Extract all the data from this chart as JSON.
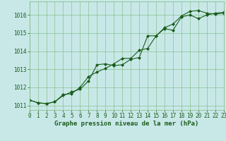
{
  "line1_x": [
    0,
    1,
    2,
    3,
    4,
    5,
    6,
    7,
    8,
    9,
    10,
    11,
    12,
    13,
    14,
    15,
    16,
    17,
    18,
    19,
    20,
    21,
    22,
    23
  ],
  "line1_y": [
    1011.3,
    1011.15,
    1011.1,
    1011.2,
    1011.55,
    1011.75,
    1011.9,
    1012.35,
    1013.25,
    1013.3,
    1013.2,
    1013.25,
    1013.55,
    1013.65,
    1014.85,
    1014.85,
    1015.3,
    1015.5,
    1015.95,
    1016.2,
    1016.25,
    1016.1,
    1016.05,
    1016.1
  ],
  "line2_x": [
    0,
    1,
    2,
    3,
    4,
    5,
    6,
    7,
    8,
    9,
    10,
    11,
    12,
    13,
    14,
    15,
    16,
    17,
    18,
    19,
    20,
    21,
    22,
    23
  ],
  "line2_y": [
    1011.3,
    1011.15,
    1011.1,
    1011.2,
    1011.6,
    1011.65,
    1012.0,
    1012.6,
    1012.85,
    1013.05,
    1013.3,
    1013.6,
    1013.6,
    1014.05,
    1014.15,
    1014.85,
    1015.25,
    1015.15,
    1015.9,
    1016.0,
    1015.8,
    1016.0,
    1016.1,
    1016.15
  ],
  "line_color": "#1a5c1a",
  "bg_color": "#c8e8e8",
  "grid_color": "#7ab87a",
  "xlabel": "Graphe pression niveau de la mer (hPa)",
  "ylim": [
    1010.75,
    1016.75
  ],
  "xlim": [
    0,
    23
  ],
  "yticks": [
    1011,
    1012,
    1013,
    1014,
    1015,
    1016
  ],
  "xticks": [
    0,
    1,
    2,
    3,
    4,
    5,
    6,
    7,
    8,
    9,
    10,
    11,
    12,
    13,
    14,
    15,
    16,
    17,
    18,
    19,
    20,
    21,
    22,
    23
  ],
  "marker": "D",
  "markersize": 2.0,
  "linewidth": 0.8,
  "tick_fontsize": 5.5,
  "xlabel_fontsize": 6.5
}
